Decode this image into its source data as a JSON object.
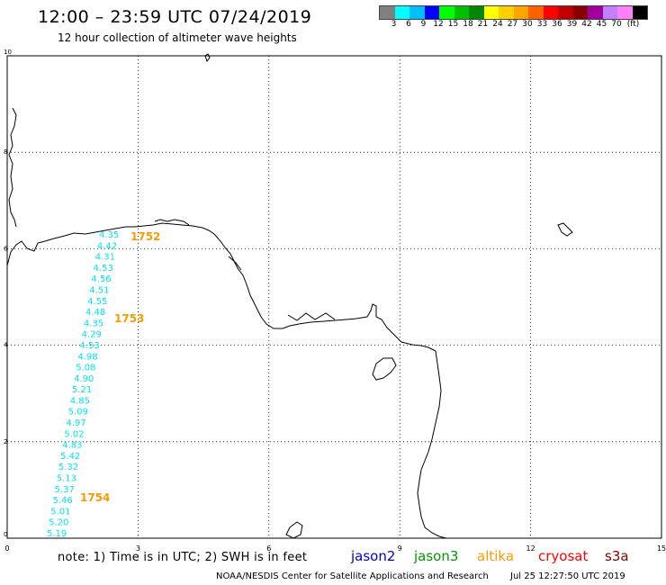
{
  "header": {
    "title": "12:00 – 23:59 UTC 07/24/2019",
    "subtitle": "12 hour collection of altimeter wave heights"
  },
  "legend": {
    "colors": [
      "#808080",
      "#00ffff",
      "#00bfff",
      "#0000ff",
      "#00ff00",
      "#00c000",
      "#008800",
      "#ffff00",
      "#ffd000",
      "#ffa500",
      "#ff6000",
      "#ff0000",
      "#c00000",
      "#880000",
      "#a000a0",
      "#c080ff",
      "#ff80ff",
      "#000000"
    ],
    "labels": [
      "3",
      "6",
      "9",
      "12",
      "15",
      "18",
      "21",
      "24",
      "27",
      "30",
      "33",
      "36",
      "39",
      "42",
      "45",
      "70",
      "(ft)"
    ]
  },
  "axes": {
    "x_ticks": [
      "0",
      "3",
      "6",
      "9",
      "12",
      "15"
    ],
    "y_ticks": [
      "0",
      "2",
      "4",
      "6",
      "8",
      "10"
    ]
  },
  "track_cyan": {
    "color": "#00e5ee",
    "labels": [
      "4.35",
      "4.42",
      "4.31",
      "4.53",
      "4.56",
      "4.51",
      "4.55",
      "4.48",
      "4.35",
      "4.29",
      "4.53",
      "4.98",
      "5.08",
      "4.90",
      "5.21",
      "4.85",
      "5.09",
      "4.97",
      "5.02",
      "4.83",
      "5.42",
      "5.32",
      "5.13",
      "5.37",
      "5.46",
      "5.01",
      "5.20",
      "5.19"
    ]
  },
  "time_labels": {
    "color": "#ff9900",
    "items": [
      "1752",
      "1753",
      "1754"
    ]
  },
  "footer": {
    "note": "note:  1) Time is in UTC;  2) SWH is in feet",
    "satellites": [
      {
        "name": "jason2",
        "color": "#0000cc"
      },
      {
        "name": "jason3",
        "color": "#009900"
      },
      {
        "name": "altika",
        "color": "#ff9900"
      },
      {
        "name": "cryosat",
        "color": "#ff0000"
      },
      {
        "name": "s3a",
        "color": "#880000"
      }
    ],
    "credit": "NOAA/NESDIS Center for Satellite Applications and Research",
    "timestamp": "Jul 25 12:27:50 UTC 2019"
  }
}
